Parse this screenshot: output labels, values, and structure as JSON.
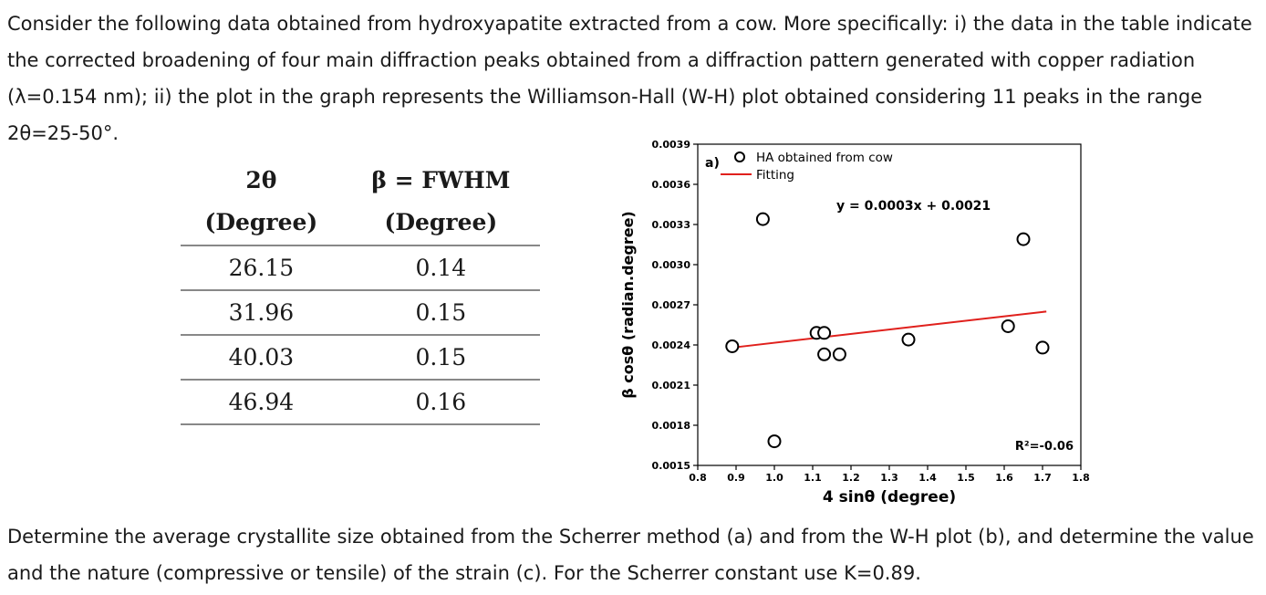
{
  "intro": "Consider the following data obtained from hydroxyapatite extracted from a cow. More specifically: i) the data in the table indicate the corrected broadening of four main diffraction peaks obtained from a diffraction pattern generated with copper radiation (λ=0.154 nm); ii) the plot in the graph represents the Williamson-Hall (W-H) plot obtained considering 11 peaks in the range 2θ=25-50°.",
  "question": "Determine the average crystallite size obtained from the Scherrer method (a) and from the W-H plot (b), and determine the value and the nature (compressive or tensile) of the strain (c). For the Scherrer constant use K=0.89.",
  "table": {
    "headers": [
      {
        "line1": "2θ",
        "line2": "(Degree)"
      },
      {
        "line1": "β = FWHM",
        "line2": "(Degree)"
      }
    ],
    "rows": [
      [
        "26.15",
        "0.14"
      ],
      [
        "31.96",
        "0.15"
      ],
      [
        "40.03",
        "0.15"
      ],
      [
        "46.94",
        "0.16"
      ]
    ]
  },
  "chart_data": {
    "type": "scatter",
    "panel_label": "a)",
    "xlabel": "4 sinθ (degree)",
    "ylabel": "β cosθ (radian.degree)",
    "xlim": [
      0.8,
      1.8
    ],
    "ylim": [
      0.0015,
      0.0039
    ],
    "x_ticks": [
      "0.8",
      "0.9",
      "1.0",
      "1.1",
      "1.2",
      "1.3",
      "1.4",
      "1.5",
      "1.6",
      "1.7",
      "1.8"
    ],
    "y_ticks": [
      "0.0015",
      "0.0018",
      "0.0021",
      "0.0024",
      "0.0027",
      "0.0030",
      "0.0033",
      "0.0036",
      "0.0039"
    ],
    "series": [
      {
        "name": "HA obtained from cow",
        "marker": "open-circle",
        "color": "#000000",
        "x": [
          0.89,
          0.97,
          1.0,
          1.11,
          1.13,
          1.13,
          1.17,
          1.35,
          1.61,
          1.65,
          1.7
        ],
        "y": [
          0.00239,
          0.00334,
          0.00168,
          0.00249,
          0.00249,
          0.00233,
          0.00233,
          0.00244,
          0.00254,
          0.00319,
          0.00238
        ]
      },
      {
        "name": "Fitting",
        "type": "line",
        "color": "#e0201c",
        "x": [
          0.89,
          1.71
        ],
        "y": [
          0.00238,
          0.00265
        ]
      }
    ],
    "equation": "y = 0.0003x + 0.0021",
    "r_squared": "R²=-0.06",
    "grid": false,
    "legend": "top-left"
  }
}
